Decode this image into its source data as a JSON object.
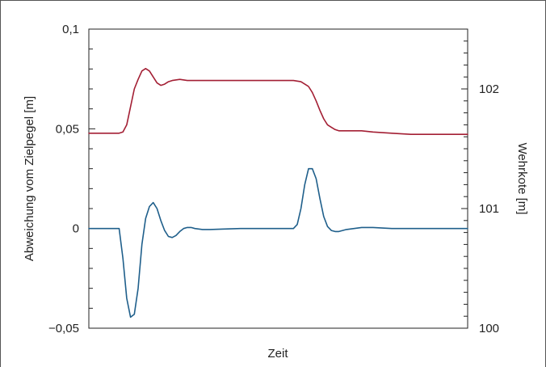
{
  "chart_data": {
    "type": "line",
    "title": "",
    "xlabel": "Zeit",
    "ylabel_left": "Abweichung vom Zielpegel [m]",
    "ylabel_right": "Wehrkote [m]",
    "grid": false,
    "x_ticks_labeled": false,
    "x_range": [
      0,
      100
    ],
    "ylim_left": [
      -0.05,
      0.1
    ],
    "ylim_right": [
      100,
      102.5
    ],
    "yticks_left": [
      {
        "value": 0.1,
        "label": "0,1"
      },
      {
        "value": 0.05,
        "label": "0,05"
      },
      {
        "value": 0,
        "label": "0"
      },
      {
        "value": -0.05,
        "label": "−0,05"
      }
    ],
    "yticks_right": [
      {
        "value": 102,
        "label": "102"
      },
      {
        "value": 101,
        "label": "101"
      },
      {
        "value": 100,
        "label": "100"
      }
    ],
    "series": [
      {
        "axis": "right",
        "color": "#a31f34",
        "x": [
          0,
          8,
          9,
          10,
          11,
          12,
          13,
          14,
          15,
          16,
          17,
          18,
          19,
          20,
          21,
          22,
          24,
          26,
          28,
          30,
          35,
          40,
          45,
          50,
          54,
          56,
          58,
          59,
          60,
          61,
          62,
          63,
          64,
          65,
          66,
          67,
          68,
          70,
          72,
          75,
          80,
          85,
          90,
          95,
          100
        ],
        "y": [
          101.63,
          101.63,
          101.64,
          101.7,
          101.85,
          102.0,
          102.08,
          102.15,
          102.17,
          102.15,
          102.1,
          102.05,
          102.03,
          102.04,
          102.06,
          102.07,
          102.08,
          102.07,
          102.07,
          102.07,
          102.07,
          102.07,
          102.07,
          102.07,
          102.07,
          102.06,
          102.02,
          101.97,
          101.9,
          101.82,
          101.75,
          101.7,
          101.68,
          101.66,
          101.65,
          101.65,
          101.65,
          101.65,
          101.65,
          101.64,
          101.63,
          101.62,
          101.62,
          101.62,
          101.62
        ]
      },
      {
        "axis": "left",
        "color": "#1f5f8b",
        "x": [
          0,
          5,
          8,
          9,
          10,
          11,
          12,
          13,
          14,
          15,
          16,
          17,
          18,
          19,
          20,
          21,
          22,
          23,
          24,
          25,
          26,
          27,
          28,
          30,
          32,
          35,
          40,
          45,
          50,
          54,
          55,
          56,
          57,
          58,
          59,
          60,
          61,
          62,
          63,
          64,
          65,
          66,
          67,
          68,
          70,
          72,
          75,
          80,
          85,
          90,
          95,
          100
        ],
        "y": [
          0,
          0,
          0,
          -0.015,
          -0.035,
          -0.0445,
          -0.043,
          -0.03,
          -0.008,
          0.005,
          0.011,
          0.013,
          0.01,
          0.004,
          -0.001,
          -0.004,
          -0.0045,
          -0.0035,
          -0.0015,
          0.0,
          0.0005,
          0.0005,
          0.0,
          -0.0005,
          -0.0005,
          -0.0003,
          0.0,
          0.0,
          0.0,
          0.0,
          0.002,
          0.01,
          0.022,
          0.03,
          0.03,
          0.025,
          0.015,
          0.006,
          0.001,
          -0.001,
          -0.0015,
          -0.0015,
          -0.001,
          -0.0005,
          0.0,
          0.0005,
          0.0005,
          0.0,
          0.0,
          0.0,
          0.0,
          0.0
        ]
      }
    ]
  }
}
